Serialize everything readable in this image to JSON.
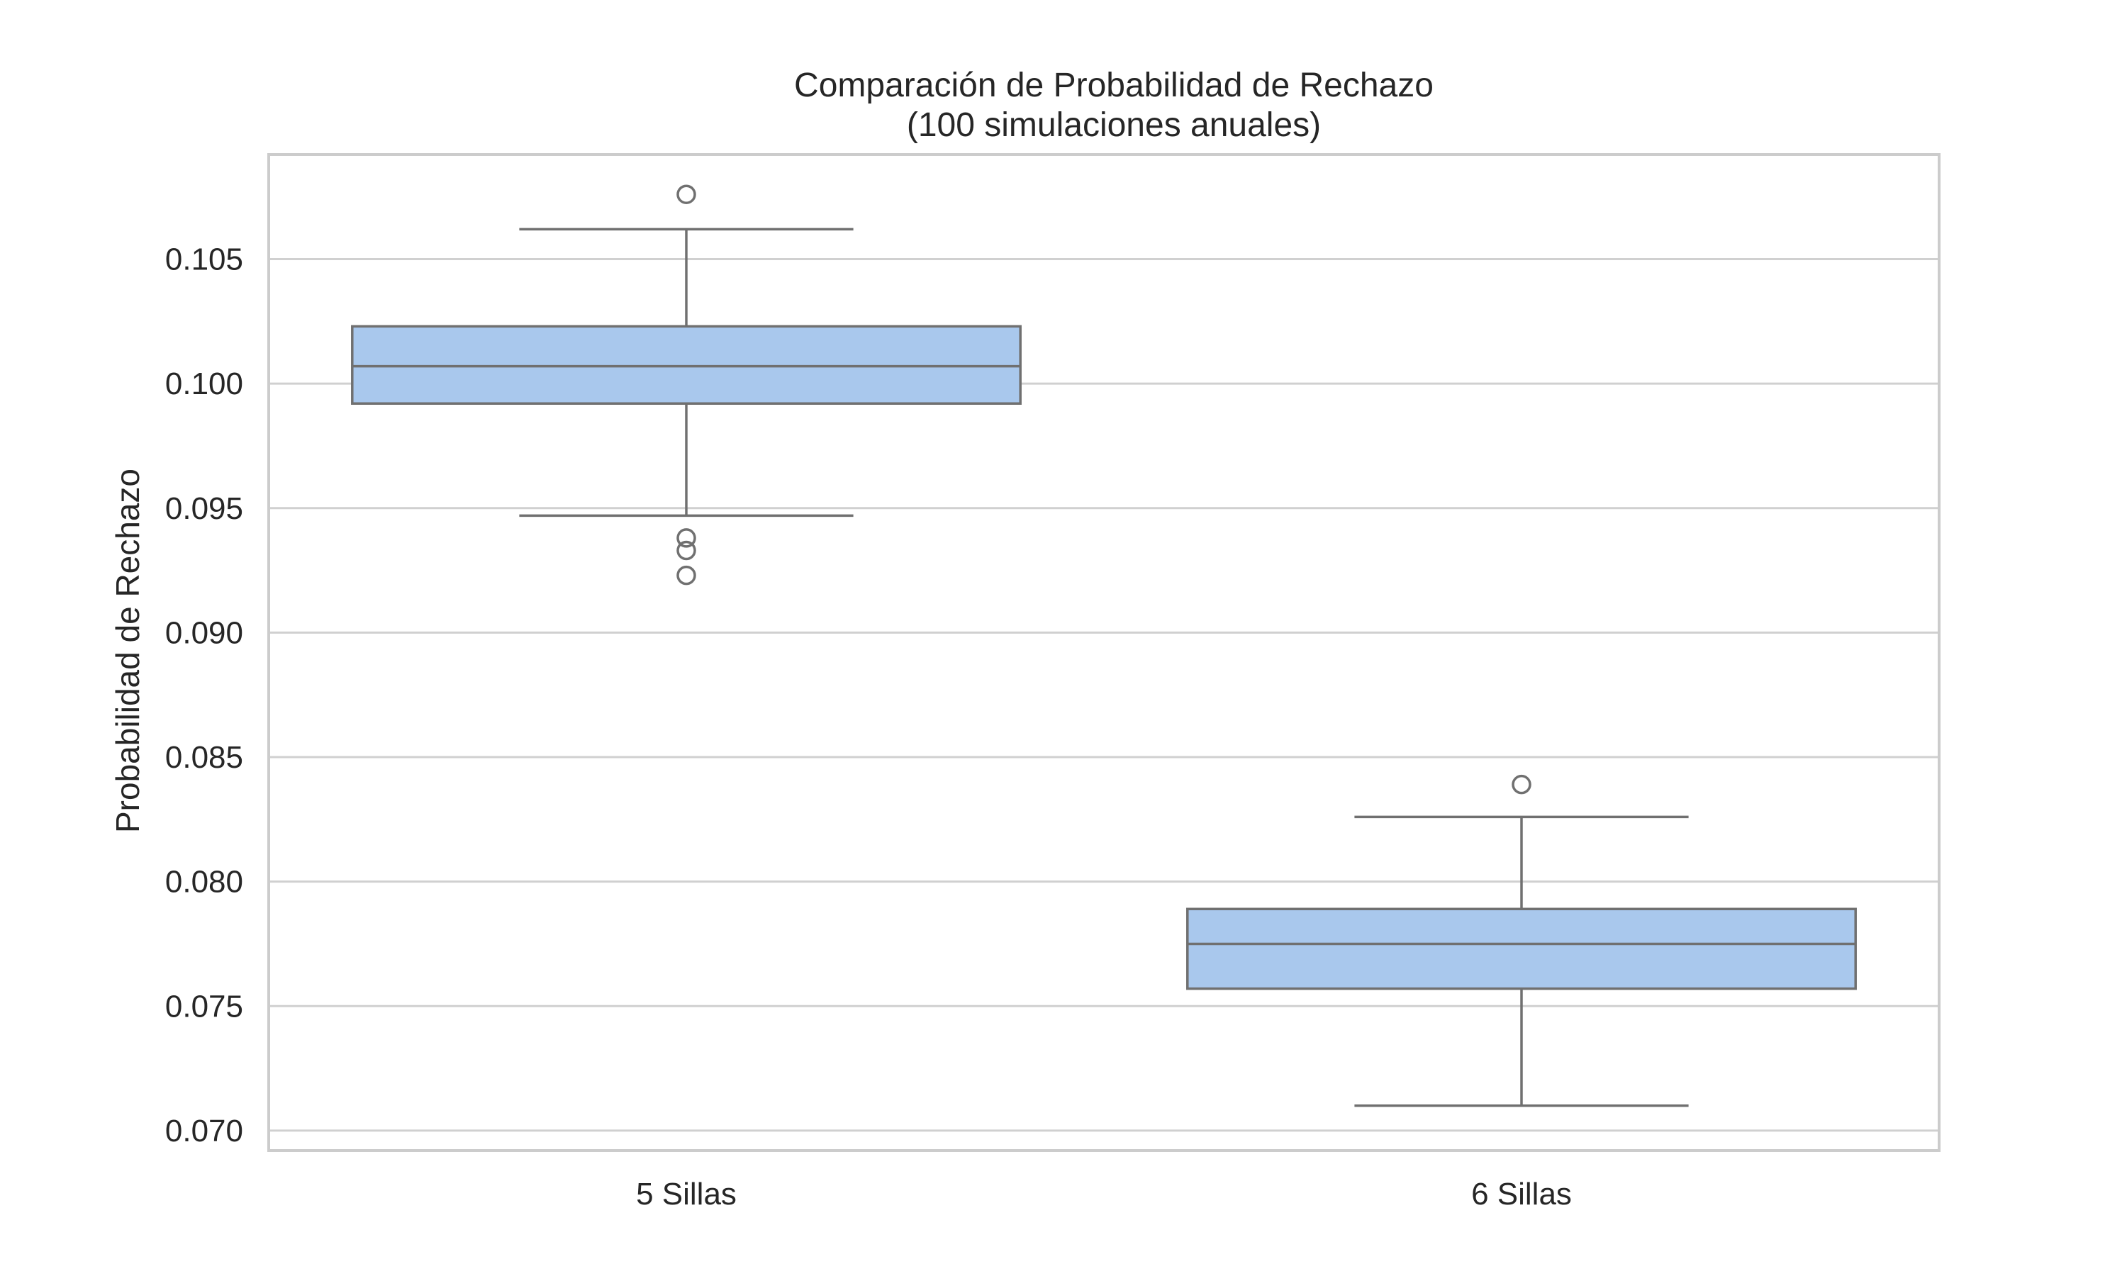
{
  "chart_data": {
    "type": "boxplot",
    "title": "Comparación de Probabilidad de Rechazo",
    "subtitle": "(100 simulaciones anuales)",
    "xlabel": "",
    "ylabel": "Probabilidad de Rechazo",
    "ylim": [
      0.0692,
      0.1092
    ],
    "yticks": [
      0.07,
      0.075,
      0.08,
      0.085,
      0.09,
      0.095,
      0.1,
      0.105
    ],
    "ytick_labels": [
      "0.070",
      "0.075",
      "0.080",
      "0.085",
      "0.090",
      "0.095",
      "0.100",
      "0.105"
    ],
    "grid": true,
    "categories": [
      "5 Sillas",
      "6 Sillas"
    ],
    "boxes": [
      {
        "category": "5 Sillas",
        "whisker_low": 0.0947,
        "q1": 0.0992,
        "median": 0.1007,
        "q3": 0.1023,
        "whisker_high": 0.1062,
        "outliers": [
          0.1076,
          0.0938,
          0.0933,
          0.0923
        ]
      },
      {
        "category": "6 Sillas",
        "whisker_low": 0.071,
        "q1": 0.0757,
        "median": 0.0775,
        "q3": 0.0789,
        "whisker_high": 0.0826,
        "outliers": [
          0.0839
        ]
      }
    ],
    "colors": {
      "box_fill": "#a9c8ed",
      "box_edge": "#707070",
      "grid": "#d0d0d0",
      "frame": "#cccccc",
      "text": "#262626"
    }
  }
}
